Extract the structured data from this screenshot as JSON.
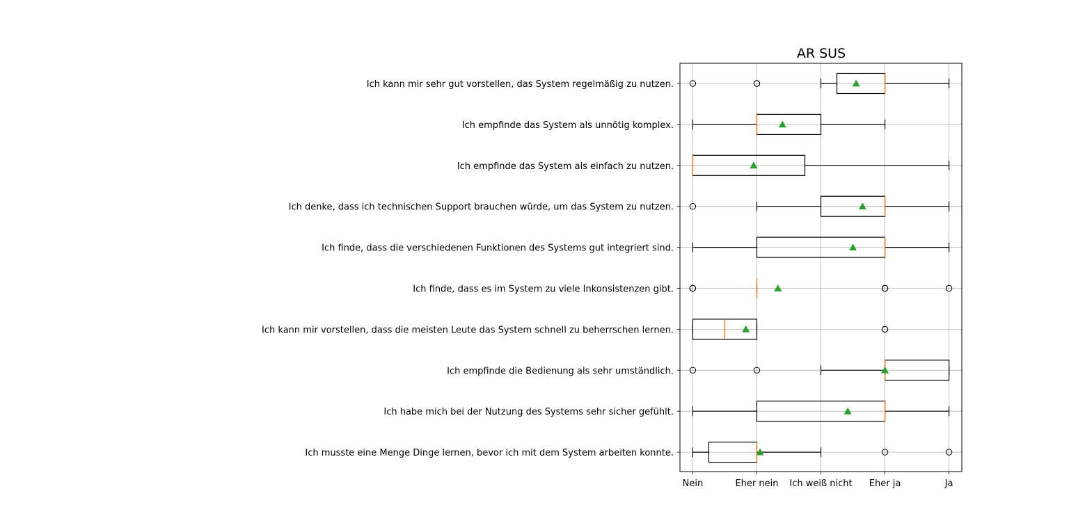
{
  "chart_data": {
    "type": "boxplot",
    "orientation": "horizontal",
    "title": "AR SUS",
    "xticks": [
      "Nein",
      "Eher nein",
      "Ich weiß nicht",
      "Eher ja",
      "Ja"
    ],
    "xlim": [
      0.8,
      5.2
    ],
    "grid": true,
    "colors": {
      "box": "#000000",
      "median": "#ff7f0e",
      "mean": "#2ca02c",
      "grid": "#b0b0b0"
    },
    "items": [
      {
        "label": "Ich kann mir sehr gut vorstellen, das System regelmäßig zu nutzen.",
        "whislo": 3,
        "q1": 3.25,
        "med": 4,
        "q3": 4,
        "whishi": 5,
        "mean": 3.55,
        "fliers": [
          1,
          2,
          2
        ]
      },
      {
        "label": "Ich empfinde das System als unnötig komplex.",
        "whislo": 1,
        "q1": 2,
        "med": 2,
        "q3": 3,
        "whishi": 4,
        "mean": 2.4,
        "fliers": []
      },
      {
        "label": "Ich empfinde das System als einfach zu nutzen.",
        "whislo": 1,
        "q1": 1,
        "med": 1,
        "q3": 2.75,
        "whishi": 5,
        "mean": 1.95,
        "fliers": []
      },
      {
        "label": "Ich denke, dass ich technischen Support brauchen würde, um das System zu nutzen.",
        "whislo": 2,
        "q1": 3,
        "med": 4,
        "q3": 4,
        "whishi": 5,
        "mean": 3.65,
        "fliers": [
          1
        ]
      },
      {
        "label": "Ich finde, dass die verschiedenen Funktionen des Systems gut integriert sind.",
        "whislo": 1,
        "q1": 2,
        "med": 4,
        "q3": 4,
        "whishi": 5,
        "mean": 3.5,
        "fliers": []
      },
      {
        "label": "Ich finde, dass es im System zu viele Inkonsistenzen gibt.",
        "whislo": 2,
        "q1": 2,
        "med": 2,
        "q3": 2,
        "whishi": 2,
        "mean": 2.33,
        "fliers": [
          1,
          1,
          4,
          4,
          5
        ]
      },
      {
        "label": "Ich kann mir vorstellen, dass die meisten Leute das System schnell zu beherrschen lernen.",
        "whislo": 1,
        "q1": 1,
        "med": 1.5,
        "q3": 2,
        "whishi": 2,
        "mean": 1.83,
        "fliers": [
          4,
          4
        ]
      },
      {
        "label": "Ich empfinde die Bedienung als sehr umständlich.",
        "whislo": 3,
        "q1": 4,
        "med": 4,
        "q3": 5,
        "whishi": 5,
        "mean": 4,
        "fliers": [
          1,
          2
        ]
      },
      {
        "label": "Ich habe mich bei der Nutzung des Systems sehr sicher gefühlt.",
        "whislo": 1,
        "q1": 2,
        "med": 4,
        "q3": 4,
        "whishi": 5,
        "mean": 3.42,
        "fliers": []
      },
      {
        "label": "Ich musste eine Menge Dinge lernen, bevor ich mit dem System arbeiten konnte.",
        "whislo": 1,
        "q1": 1.25,
        "med": 2,
        "q3": 2,
        "whishi": 3,
        "mean": 2.05,
        "fliers": [
          4,
          5
        ]
      }
    ]
  }
}
